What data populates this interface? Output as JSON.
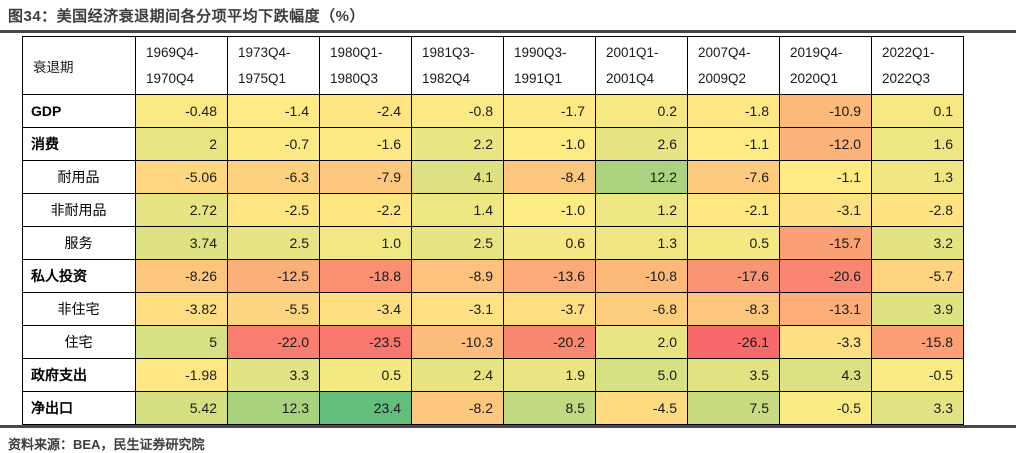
{
  "page": {
    "title": "图34：美国经济衰退期间各分项平均下跌幅度（%）",
    "source": "资料来源：BEA，民生证券研究院"
  },
  "chart_data": {
    "type": "table",
    "title": "图34：美国经济衰退期间各分项平均下跌幅度（%）",
    "row_header_label": "衰退期",
    "columns": [
      {
        "line1": "1969Q4-",
        "line2": "1970Q4"
      },
      {
        "line1": "1973Q4-",
        "line2": "1975Q1"
      },
      {
        "line1": "1980Q1-",
        "line2": "1980Q3"
      },
      {
        "line1": "1981Q3-",
        "line2": "1982Q4"
      },
      {
        "line1": "1990Q3-",
        "line2": "1991Q1"
      },
      {
        "line1": "2001Q1-",
        "line2": "2001Q4"
      },
      {
        "line1": "2007Q4-",
        "line2": "2009Q2"
      },
      {
        "line1": "2019Q4-",
        "line2": "2020Q1"
      },
      {
        "line1": "2022Q1-",
        "line2": "2022Q3"
      }
    ],
    "rows": [
      {
        "label": "GDP",
        "style": "main",
        "values": [
          "-0.48",
          "-1.4",
          "-2.4",
          "-0.8",
          "-1.7",
          "0.2",
          "-1.8",
          "-10.9",
          "0.1"
        ]
      },
      {
        "label": "消费",
        "style": "main",
        "values": [
          "2",
          "-0.7",
          "-1.6",
          "2.2",
          "-1.0",
          "2.6",
          "-1.1",
          "-12.0",
          "1.6"
        ]
      },
      {
        "label": "耐用品",
        "style": "sub",
        "values": [
          "-5.06",
          "-6.3",
          "-7.9",
          "4.1",
          "-8.4",
          "12.2",
          "-7.6",
          "-1.1",
          "1.3"
        ]
      },
      {
        "label": "非耐用品",
        "style": "sub",
        "values": [
          "2.72",
          "-2.5",
          "-2.2",
          "1.4",
          "-1.0",
          "1.2",
          "-2.1",
          "-3.1",
          "-2.8"
        ]
      },
      {
        "label": "服务",
        "style": "sub",
        "values": [
          "3.74",
          "2.5",
          "1.0",
          "2.5",
          "0.6",
          "1.3",
          "0.5",
          "-15.7",
          "3.2"
        ]
      },
      {
        "label": "私人投资",
        "style": "main",
        "values": [
          "-8.26",
          "-12.5",
          "-18.8",
          "-8.9",
          "-13.6",
          "-10.8",
          "-17.6",
          "-20.6",
          "-5.7"
        ]
      },
      {
        "label": "非住宅",
        "style": "sub",
        "values": [
          "-3.82",
          "-5.5",
          "-3.4",
          "-3.1",
          "-3.7",
          "-6.8",
          "-8.3",
          "-13.1",
          "3.9"
        ]
      },
      {
        "label": "住宅",
        "style": "sub",
        "values": [
          "5",
          "-22.0",
          "-23.5",
          "-10.3",
          "-20.2",
          "2.0",
          "-26.1",
          "-3.3",
          "-15.8"
        ]
      },
      {
        "label": "政府支出",
        "style": "main",
        "values": [
          "-1.98",
          "3.3",
          "0.5",
          "2.4",
          "1.9",
          "5.0",
          "3.5",
          "4.3",
          "-0.5"
        ]
      },
      {
        "label": "净出口",
        "style": "main",
        "values": [
          "5.42",
          "12.3",
          "23.4",
          "-8.2",
          "8.5",
          "-4.5",
          "7.5",
          "-0.5",
          "3.3"
        ]
      }
    ],
    "colorscale": {
      "description": "3-color scale: min=red, 50th percentile=yellow, max=green",
      "min_color": "#F8696B",
      "mid_color": "#FFEB84",
      "max_color": "#63BE7B"
    },
    "rule_color": "#4a4a4a"
  }
}
